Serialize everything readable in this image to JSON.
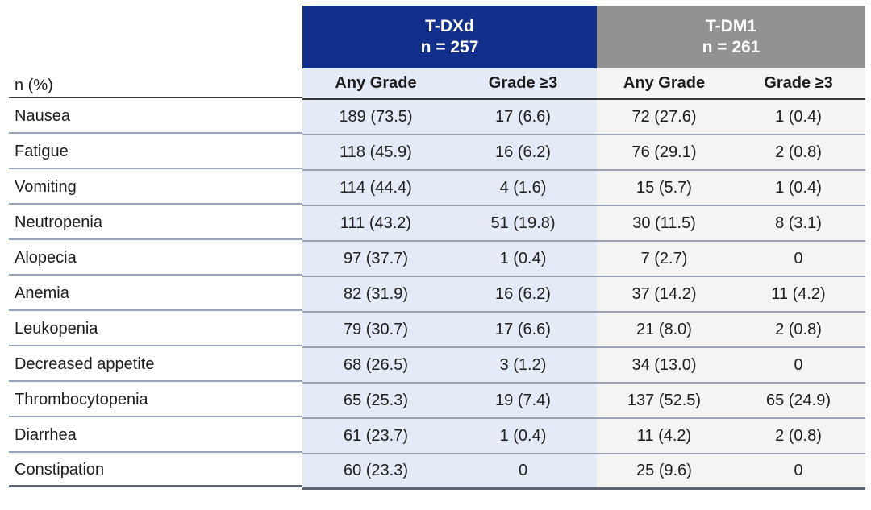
{
  "colors": {
    "tdxd_header_bg": "#122F8C",
    "tdm1_header_bg": "#929292",
    "header_text": "#FFFFFF",
    "tdxd_column_bg": "#E4EAF6",
    "tdm1_column_bg": "#F4F4F2",
    "header_underline": "#3A3A3A",
    "row_separator": "#99A1B5",
    "bottom_border": "#5F6673",
    "text": "#1C1C1C"
  },
  "chart_data": {
    "type": "table",
    "corner_label": "n (%)",
    "groups": [
      {
        "name": "T-DXd",
        "n": "n = 257"
      },
      {
        "name": "T-DM1",
        "n": "n = 261"
      }
    ],
    "subcolumns": [
      "Any Grade",
      "Grade ≥3",
      "Any Grade",
      "Grade ≥3"
    ],
    "rows": [
      {
        "label": "Nausea",
        "values": [
          "189 (73.5)",
          "17 (6.6)",
          "72 (27.6)",
          "1 (0.4)"
        ]
      },
      {
        "label": "Fatigue",
        "values": [
          "118 (45.9)",
          "16 (6.2)",
          "76 (29.1)",
          "2 (0.8)"
        ]
      },
      {
        "label": "Vomiting",
        "values": [
          "114 (44.4)",
          "4 (1.6)",
          "15 (5.7)",
          "1 (0.4)"
        ]
      },
      {
        "label": "Neutropenia",
        "values": [
          "111 (43.2)",
          "51 (19.8)",
          "30 (11.5)",
          "8 (3.1)"
        ]
      },
      {
        "label": "Alopecia",
        "values": [
          "97 (37.7)",
          "1 (0.4)",
          "7 (2.7)",
          "0"
        ]
      },
      {
        "label": "Anemia",
        "values": [
          "82 (31.9)",
          "16 (6.2)",
          "37 (14.2)",
          "11 (4.2)"
        ]
      },
      {
        "label": "Leukopenia",
        "values": [
          "79 (30.7)",
          "17 (6.6)",
          "21 (8.0)",
          "2 (0.8)"
        ]
      },
      {
        "label": "Decreased appetite",
        "values": [
          "68 (26.5)",
          "3 (1.2)",
          "34 (13.0)",
          "0"
        ]
      },
      {
        "label": "Thrombocytopenia",
        "values": [
          "65 (25.3)",
          "19 (7.4)",
          "137 (52.5)",
          "65 (24.9)"
        ]
      },
      {
        "label": "Diarrhea",
        "values": [
          "61 (23.7)",
          "1 (0.4)",
          "11 (4.2)",
          "2 (0.8)"
        ]
      },
      {
        "label": "Constipation",
        "values": [
          "60 (23.3)",
          "0",
          "25 (9.6)",
          "0"
        ]
      }
    ]
  }
}
